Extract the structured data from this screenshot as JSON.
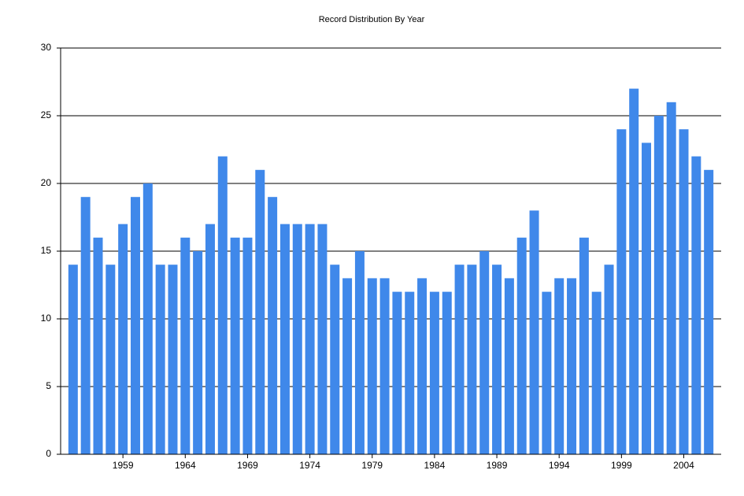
{
  "chart_data": {
    "type": "bar",
    "title": "Record Distribution By Year",
    "categories": [
      null,
      null,
      null,
      null,
      "1959",
      null,
      null,
      null,
      null,
      "1964",
      null,
      null,
      null,
      null,
      "1969",
      null,
      null,
      null,
      null,
      "1974",
      null,
      null,
      null,
      null,
      "1979",
      null,
      null,
      null,
      null,
      "1984",
      null,
      null,
      null,
      null,
      "1989",
      null,
      null,
      null,
      null,
      "1994",
      null,
      null,
      null,
      null,
      "1999",
      null,
      null,
      null,
      null,
      "2004",
      null,
      null
    ],
    "values": [
      14,
      19,
      16,
      14,
      17,
      19,
      20,
      14,
      14,
      16,
      15,
      17,
      22,
      16,
      16,
      21,
      19,
      17,
      17,
      17,
      17,
      14,
      13,
      15,
      13,
      13,
      12,
      12,
      13,
      12,
      12,
      14,
      14,
      15,
      14,
      13,
      16,
      18,
      12,
      13,
      13,
      16,
      12,
      14,
      24,
      27,
      23,
      25,
      26,
      24,
      22,
      21
    ],
    "color": "#3f88ea",
    "ylim": [
      0,
      30
    ],
    "yticks": [
      0,
      5,
      10,
      15,
      20,
      25,
      30
    ],
    "grid": true
  }
}
